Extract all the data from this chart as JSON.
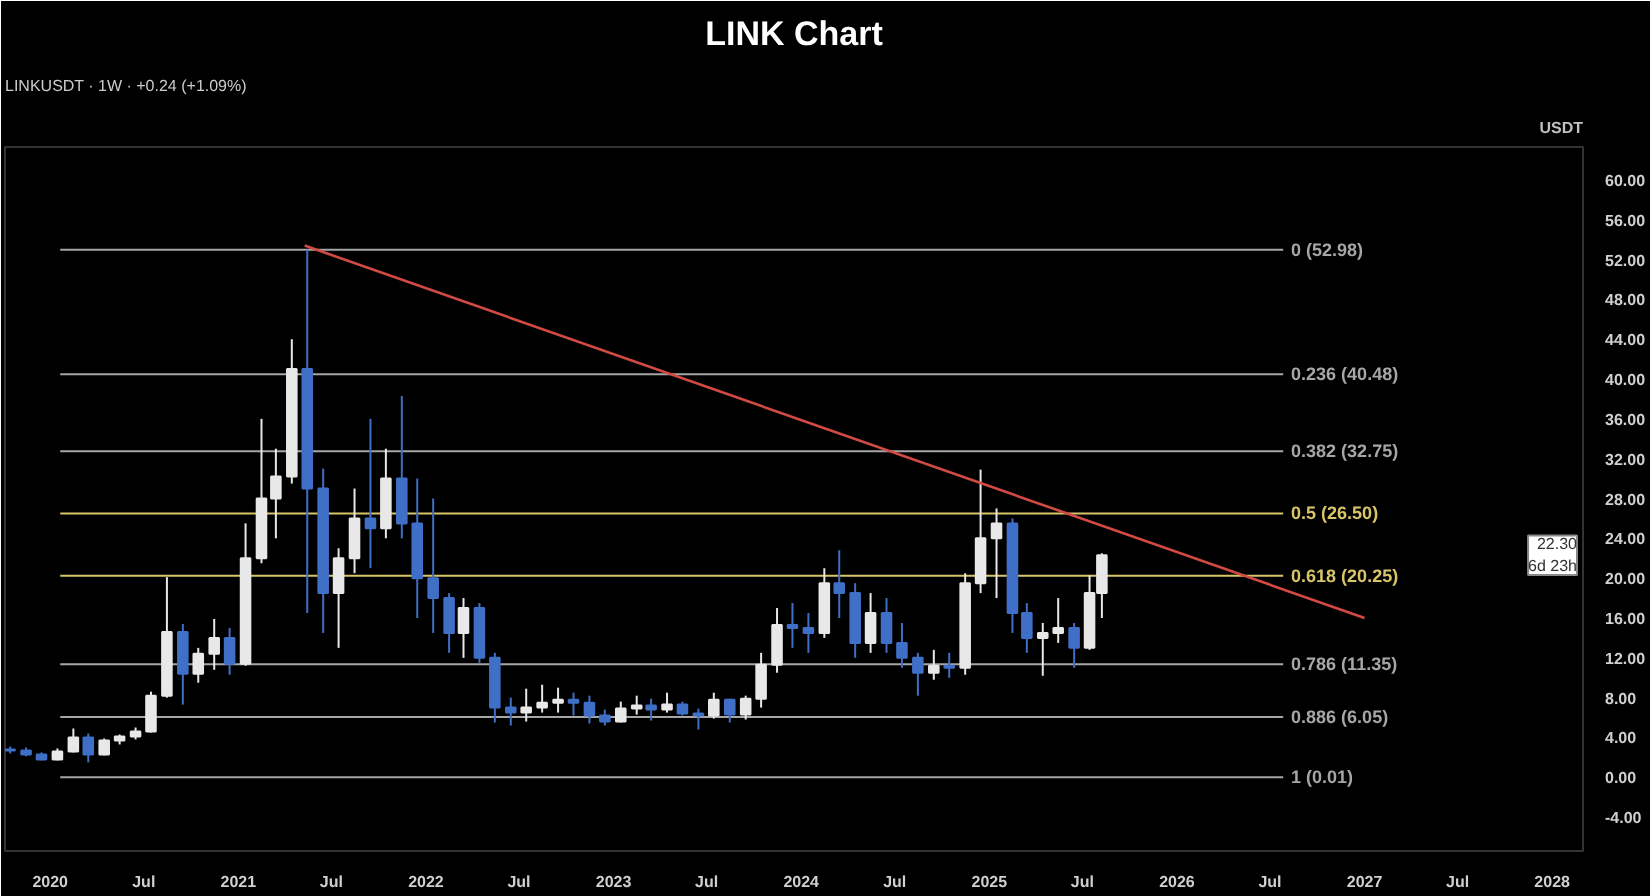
{
  "chart_data": {
    "type": "candlestick",
    "title": "LINK Chart",
    "ylabel": "USDT",
    "x": [
      "2019-10-15",
      "2019-11-15",
      "2019-12-15",
      "2020-01-15",
      "2020-02-15",
      "2020-03-15",
      "2020-04-15",
      "2020-05-15",
      "2020-06-15",
      "2020-07-15",
      "2020-08-15",
      "2020-09-15",
      "2020-10-15",
      "2020-11-15",
      "2020-12-15",
      "2021-01-15",
      "2021-02-15",
      "2021-03-15",
      "2021-04-15",
      "2021-05-15",
      "2021-06-15",
      "2021-07-15",
      "2021-08-15",
      "2021-09-15",
      "2021-10-15",
      "2021-11-15",
      "2021-12-15",
      "2022-01-15",
      "2022-02-15",
      "2022-03-15",
      "2022-04-15",
      "2022-05-15",
      "2022-06-15",
      "2022-07-15",
      "2022-08-15",
      "2022-09-15",
      "2022-10-15",
      "2022-11-15",
      "2022-12-15",
      "2023-01-15",
      "2023-02-15",
      "2023-03-15",
      "2023-04-15",
      "2023-05-15",
      "2023-06-15",
      "2023-07-15",
      "2023-08-15",
      "2023-09-15",
      "2023-10-15",
      "2023-11-15",
      "2023-12-15",
      "2024-01-15",
      "2024-02-15",
      "2024-03-15",
      "2024-04-15",
      "2024-05-15",
      "2024-06-15",
      "2024-07-15",
      "2024-08-15",
      "2024-09-15",
      "2024-10-15",
      "2024-11-15",
      "2024-12-15",
      "2025-01-15",
      "2025-02-15",
      "2025-03-15",
      "2025-04-15",
      "2025-05-15",
      "2025-06-15",
      "2025-07-15",
      "2025-08-08"
    ],
    "ohlc": [
      [
        2.8,
        3.1,
        2.4,
        2.7
      ],
      [
        2.7,
        3.0,
        2.1,
        2.3
      ],
      [
        2.3,
        2.5,
        1.7,
        1.8
      ],
      [
        1.8,
        2.9,
        1.7,
        2.6
      ],
      [
        2.6,
        4.9,
        2.5,
        4.0
      ],
      [
        4.0,
        4.4,
        1.5,
        2.3
      ],
      [
        2.3,
        3.9,
        2.2,
        3.7
      ],
      [
        3.7,
        4.3,
        3.3,
        4.1
      ],
      [
        4.1,
        5.0,
        3.8,
        4.6
      ],
      [
        4.6,
        8.6,
        4.5,
        8.2
      ],
      [
        8.2,
        20.1,
        8.0,
        14.6
      ],
      [
        14.6,
        15.4,
        7.3,
        10.4
      ],
      [
        10.4,
        13.0,
        9.5,
        12.4
      ],
      [
        12.4,
        15.9,
        10.8,
        14.0
      ],
      [
        14.0,
        15.0,
        10.3,
        11.4
      ],
      [
        11.4,
        25.5,
        11.2,
        22.0
      ],
      [
        22.0,
        36.0,
        21.5,
        28.0
      ],
      [
        28.0,
        33.0,
        24.0,
        30.2
      ],
      [
        30.2,
        44.0,
        29.5,
        41.0
      ],
      [
        41.0,
        52.98,
        16.5,
        29.0
      ],
      [
        29.0,
        31.0,
        14.5,
        18.5
      ],
      [
        18.5,
        23.0,
        13.0,
        22.0
      ],
      [
        22.0,
        29.0,
        20.5,
        26.0
      ],
      [
        26.0,
        36.0,
        21.0,
        25.0
      ],
      [
        25.0,
        33.0,
        24.0,
        30.0
      ],
      [
        30.0,
        38.3,
        24.0,
        25.5
      ],
      [
        25.5,
        30.0,
        16.0,
        20.0
      ],
      [
        20.0,
        28.0,
        14.5,
        18.0
      ],
      [
        18.0,
        18.5,
        12.5,
        14.5
      ],
      [
        14.5,
        18.0,
        12.0,
        17.0
      ],
      [
        17.0,
        17.5,
        11.5,
        12.0
      ],
      [
        12.0,
        12.5,
        5.5,
        7.0
      ],
      [
        7.0,
        8.0,
        5.2,
        6.5
      ],
      [
        6.5,
        8.9,
        5.6,
        7.0
      ],
      [
        7.0,
        9.3,
        6.5,
        7.5
      ],
      [
        7.5,
        9.0,
        6.5,
        7.8
      ],
      [
        7.8,
        8.5,
        6.2,
        7.5
      ],
      [
        7.5,
        8.2,
        5.4,
        6.2
      ],
      [
        6.2,
        6.8,
        5.2,
        5.6
      ],
      [
        5.6,
        7.6,
        5.5,
        6.9
      ],
      [
        6.9,
        8.2,
        6.3,
        7.2
      ],
      [
        7.2,
        7.9,
        5.7,
        6.8
      ],
      [
        6.8,
        8.5,
        6.5,
        7.3
      ],
      [
        7.3,
        7.6,
        6.2,
        6.4
      ],
      [
        6.4,
        6.9,
        4.8,
        6.2
      ],
      [
        6.2,
        8.5,
        5.9,
        7.8
      ],
      [
        7.8,
        7.9,
        5.5,
        6.3
      ],
      [
        6.3,
        8.2,
        5.8,
        7.9
      ],
      [
        7.9,
        12.5,
        7.0,
        11.3
      ],
      [
        11.3,
        17.0,
        10.5,
        15.3
      ],
      [
        15.3,
        17.5,
        13.0,
        15.0
      ],
      [
        15.0,
        16.5,
        12.5,
        14.5
      ],
      [
        14.5,
        21.0,
        14.0,
        19.5
      ],
      [
        19.5,
        22.8,
        16.0,
        18.5
      ],
      [
        18.5,
        19.5,
        12.0,
        13.5
      ],
      [
        13.5,
        18.5,
        12.5,
        16.5
      ],
      [
        16.5,
        18.0,
        12.5,
        13.5
      ],
      [
        13.5,
        15.5,
        11.0,
        12.0
      ],
      [
        12.0,
        12.5,
        8.2,
        10.5
      ],
      [
        10.5,
        12.8,
        9.8,
        11.2
      ],
      [
        11.2,
        12.5,
        10.0,
        11.0
      ],
      [
        11.0,
        20.5,
        10.3,
        19.5
      ],
      [
        19.5,
        30.9,
        18.5,
        24.0
      ],
      [
        24.0,
        27.0,
        18.0,
        25.5
      ],
      [
        25.5,
        26.0,
        14.5,
        16.5
      ],
      [
        16.5,
        17.5,
        12.5,
        14.0
      ],
      [
        14.0,
        15.5,
        10.2,
        14.5
      ],
      [
        14.5,
        18.0,
        13.5,
        15.0
      ],
      [
        15.0,
        15.5,
        11.0,
        13.0
      ],
      [
        13.0,
        20.3,
        12.8,
        18.5
      ],
      [
        18.5,
        22.5,
        16.0,
        22.3
      ]
    ],
    "colors": [
      "#3f6fc6",
      "#3f6fc6",
      "#3f6fc6",
      "#e8e8e8",
      "#e8e8e8",
      "#3f6fc6",
      "#e8e8e8",
      "#e8e8e8",
      "#e8e8e8",
      "#e8e8e8",
      "#e8e8e8",
      "#3f6fc6",
      "#e8e8e8",
      "#e8e8e8",
      "#3f6fc6",
      "#e8e8e8",
      "#e8e8e8",
      "#e8e8e8",
      "#e8e8e8",
      "#3f6fc6",
      "#3f6fc6",
      "#e8e8e8",
      "#e8e8e8",
      "#3f6fc6",
      "#e8e8e8",
      "#3f6fc6",
      "#3f6fc6",
      "#3f6fc6",
      "#3f6fc6",
      "#e8e8e8",
      "#3f6fc6",
      "#3f6fc6",
      "#3f6fc6",
      "#e8e8e8",
      "#e8e8e8",
      "#e8e8e8",
      "#3f6fc6",
      "#3f6fc6",
      "#3f6fc6",
      "#e8e8e8",
      "#e8e8e8",
      "#3f6fc6",
      "#e8e8e8",
      "#3f6fc6",
      "#3f6fc6",
      "#e8e8e8",
      "#3f6fc6",
      "#e8e8e8",
      "#e8e8e8",
      "#e8e8e8",
      "#3f6fc6",
      "#3f6fc6",
      "#e8e8e8",
      "#3f6fc6",
      "#3f6fc6",
      "#e8e8e8",
      "#3f6fc6",
      "#3f6fc6",
      "#3f6fc6",
      "#e8e8e8",
      "#3f6fc6",
      "#e8e8e8",
      "#e8e8e8",
      "#e8e8e8",
      "#3f6fc6",
      "#3f6fc6",
      "#e8e8e8",
      "#e8e8e8",
      "#3f6fc6",
      "#e8e8e8",
      "#e8e8e8"
    ],
    "series": [
      {
        "type": "line",
        "x": [
          "2021-05-10",
          "2027-01-01"
        ],
        "values": [
          53.4,
          16.0
        ],
        "color": "#d24a43"
      }
    ],
    "ref_lines": [
      {
        "axis": "y",
        "value": 52.98,
        "label": "0 (52.98)",
        "color": "#a6a6a6"
      },
      {
        "axis": "y",
        "value": 40.48,
        "label": "0.236 (40.48)",
        "color": "#a6a6a6"
      },
      {
        "axis": "y",
        "value": 32.75,
        "label": "0.382 (32.75)",
        "color": "#a6a6a6"
      },
      {
        "axis": "y",
        "value": 26.5,
        "label": "0.5 (26.50)",
        "color": "#d8c56a"
      },
      {
        "axis": "y",
        "value": 20.25,
        "label": "0.618 (20.25)",
        "color": "#d8c56a"
      },
      {
        "axis": "y",
        "value": 11.35,
        "label": "0.786 (11.35)",
        "color": "#a6a6a6"
      },
      {
        "axis": "y",
        "value": 6.05,
        "label": "0.886 (6.05)",
        "color": "#a6a6a6"
      },
      {
        "axis": "y",
        "value": 0.01,
        "label": "1 (0.01)",
        "color": "#a6a6a6"
      }
    ],
    "annotations": [
      "LINKUSDT · 1W · +0.24 (+1.09%)",
      "22.30",
      "6d 23h"
    ],
    "xlim": [
      "2019-10-05",
      "2028-03-01"
    ],
    "ylim": [
      -7.4,
      63.3
    ],
    "xticks": [
      {
        "value": "2020-01-01",
        "label": "2020"
      },
      {
        "value": "2020-07-01",
        "label": "Jul"
      },
      {
        "value": "2021-01-01",
        "label": "2021"
      },
      {
        "value": "2021-07-01",
        "label": "Jul"
      },
      {
        "value": "2022-01-01",
        "label": "2022"
      },
      {
        "value": "2022-07-01",
        "label": "Jul"
      },
      {
        "value": "2023-01-01",
        "label": "2023"
      },
      {
        "value": "2023-07-01",
        "label": "Jul"
      },
      {
        "value": "2024-01-01",
        "label": "2024"
      },
      {
        "value": "2024-07-01",
        "label": "Jul"
      },
      {
        "value": "2025-01-01",
        "label": "2025"
      },
      {
        "value": "2025-07-01",
        "label": "Jul"
      },
      {
        "value": "2026-01-01",
        "label": "2026"
      },
      {
        "value": "2026-07-01",
        "label": "Jul"
      },
      {
        "value": "2027-01-01",
        "label": "2027"
      },
      {
        "value": "2027-07-01",
        "label": "Jul"
      },
      {
        "value": "2028-01-01",
        "label": "2028"
      }
    ],
    "yticks": [
      {
        "value": -4,
        "label": "-4.00"
      },
      {
        "value": 0,
        "label": "0.00"
      },
      {
        "value": 4,
        "label": "4.00"
      },
      {
        "value": 8,
        "label": "8.00"
      },
      {
        "value": 12,
        "label": "12.00"
      },
      {
        "value": 16,
        "label": "16.00"
      },
      {
        "value": 20,
        "label": "20.00"
      },
      {
        "value": 24,
        "label": "24.00"
      },
      {
        "value": 28,
        "label": "28.00"
      },
      {
        "value": 32,
        "label": "32.00"
      },
      {
        "value": 36,
        "label": "36.00"
      },
      {
        "value": 40,
        "label": "40.00"
      },
      {
        "value": 44,
        "label": "44.00"
      },
      {
        "value": 48,
        "label": "48.00"
      },
      {
        "value": 52,
        "label": "52.00"
      },
      {
        "value": 56,
        "label": "56.00"
      },
      {
        "value": 60,
        "label": "60.00"
      }
    ]
  }
}
